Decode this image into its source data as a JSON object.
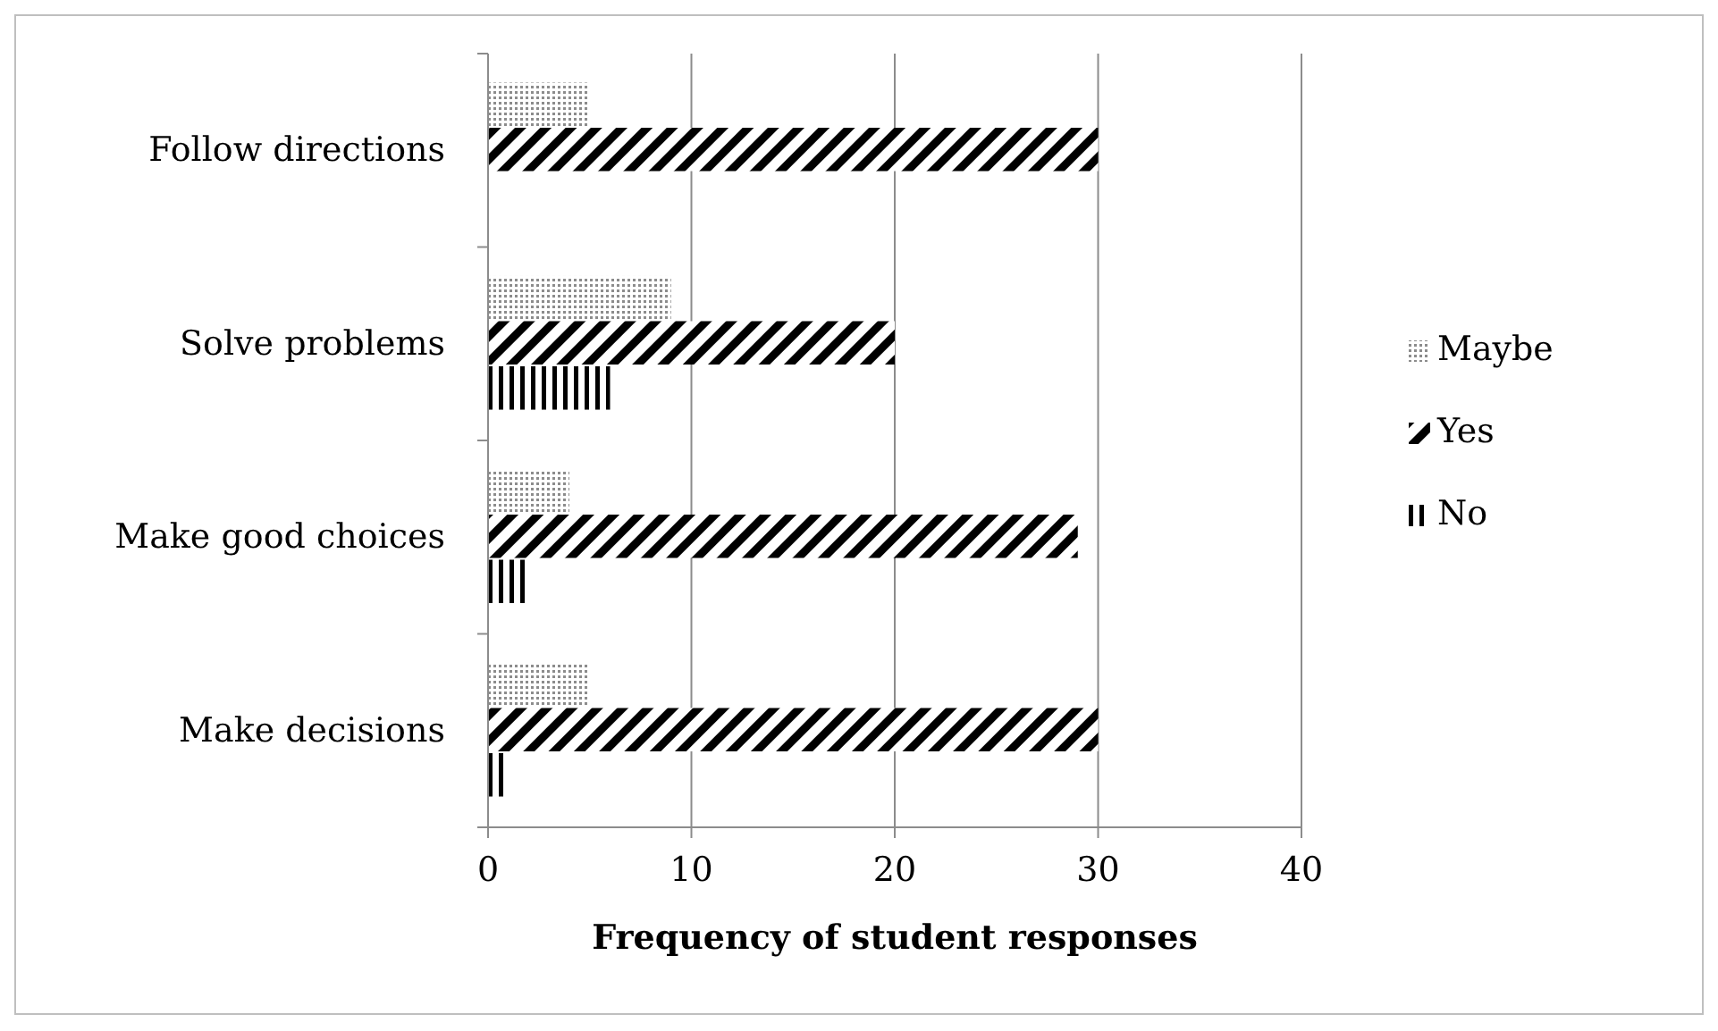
{
  "chart_data": {
    "type": "bar",
    "orientation": "horizontal",
    "xlabel": "Frequency of student responses",
    "categories": [
      "Follow directions",
      "Solve problems",
      "Make good choices",
      "Make decisions"
    ],
    "series": [
      {
        "name": "Maybe",
        "color": "#8c8c8c",
        "values": [
          5,
          9,
          4,
          5
        ]
      },
      {
        "name": "Yes",
        "color": "#000000",
        "values": [
          30,
          20,
          29,
          30
        ]
      },
      {
        "name": "No",
        "color": "#000000",
        "values": [
          0,
          6,
          2,
          1
        ]
      }
    ],
    "xlim": [
      0,
      40
    ],
    "xticks": [
      0,
      10,
      20,
      30,
      40
    ],
    "grid": "x",
    "legend": "right"
  }
}
